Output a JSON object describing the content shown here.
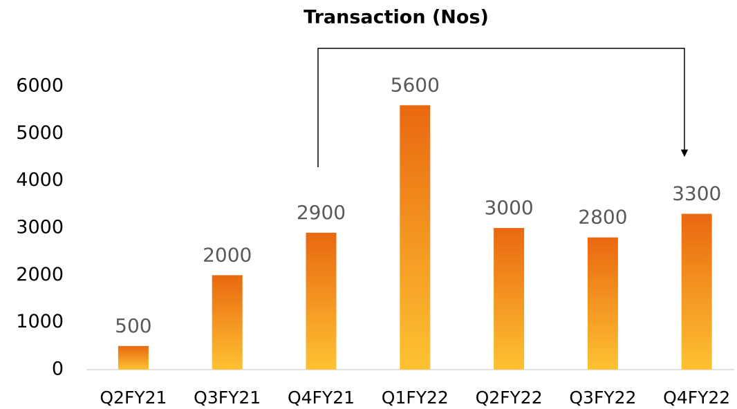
{
  "chart_data": {
    "type": "bar",
    "title": "Transaction (Nos)",
    "categories": [
      "Q2FY21",
      "Q3FY21",
      "Q4FY21",
      "Q1FY22",
      "Q2FY22",
      "Q3FY22",
      "Q4FY22"
    ],
    "values": [
      500,
      2000,
      2900,
      5600,
      3000,
      2800,
      3300
    ],
    "gradient": [
      "#e96810",
      "#fec233"
    ],
    "ylim": [
      0,
      6000
    ],
    "yticks": [
      0,
      1000,
      2000,
      3000,
      4000,
      5000,
      6000
    ],
    "grid": false
  }
}
